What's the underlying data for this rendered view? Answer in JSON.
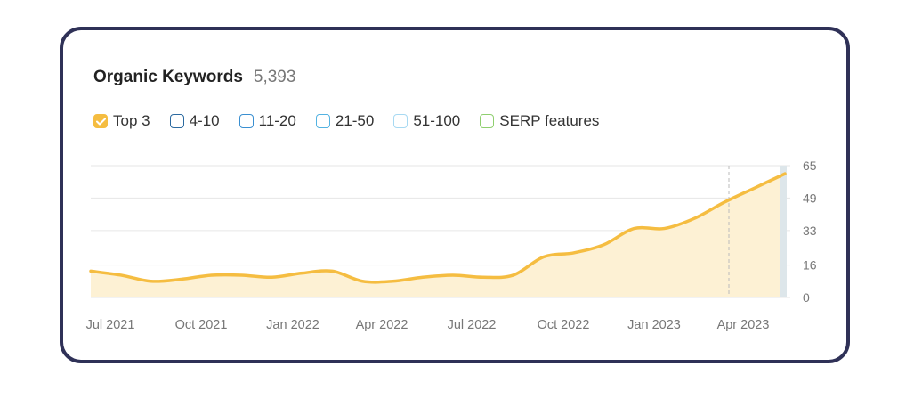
{
  "header": {
    "title": "Organic Keywords",
    "count": "5,393"
  },
  "legend": [
    {
      "label": "Top 3",
      "checked": true,
      "color": "#f5bd41"
    },
    {
      "label": "4-10",
      "checked": false,
      "color": "#2c6aa0"
    },
    {
      "label": "11-20",
      "checked": false,
      "color": "#3a8fd1"
    },
    {
      "label": "21-50",
      "checked": false,
      "color": "#54b3e2"
    },
    {
      "label": "51-100",
      "checked": false,
      "color": "#a7d9f2"
    },
    {
      "label": "SERP features",
      "checked": false,
      "color": "#8fcf6f"
    }
  ],
  "colors": {
    "line": "#f5bd41",
    "fill": "#fdf1d4",
    "grid": "#e6e6e6",
    "marker": "#bbbbbb",
    "edge": "#dde6ea"
  },
  "chart_data": {
    "type": "area",
    "x_tick_labels": [
      "Jul 2021",
      "Oct 2021",
      "Jan 2022",
      "Apr 2022",
      "Jul 2022",
      "Oct 2022",
      "Jan 2023",
      "Apr 2023"
    ],
    "y_ticks": [
      0,
      16,
      33,
      49,
      65
    ],
    "ylim": [
      0,
      65
    ],
    "grid": true,
    "series": [
      {
        "name": "Top 3",
        "x": [
          "2021-06",
          "2021-07",
          "2021-08",
          "2021-09",
          "2021-10",
          "2021-11",
          "2021-12",
          "2022-01",
          "2022-02",
          "2022-03",
          "2022-04",
          "2022-05",
          "2022-06",
          "2022-07",
          "2022-08",
          "2022-09",
          "2022-10",
          "2022-11",
          "2022-12",
          "2023-01",
          "2023-02",
          "2023-03",
          "2023-04",
          "2023-05"
        ],
        "values": [
          13,
          11,
          8,
          9,
          11,
          11,
          10,
          12,
          13,
          8,
          8,
          10,
          11,
          10,
          11,
          20,
          22,
          26,
          34,
          34,
          39,
          47,
          54,
          61
        ]
      }
    ]
  }
}
